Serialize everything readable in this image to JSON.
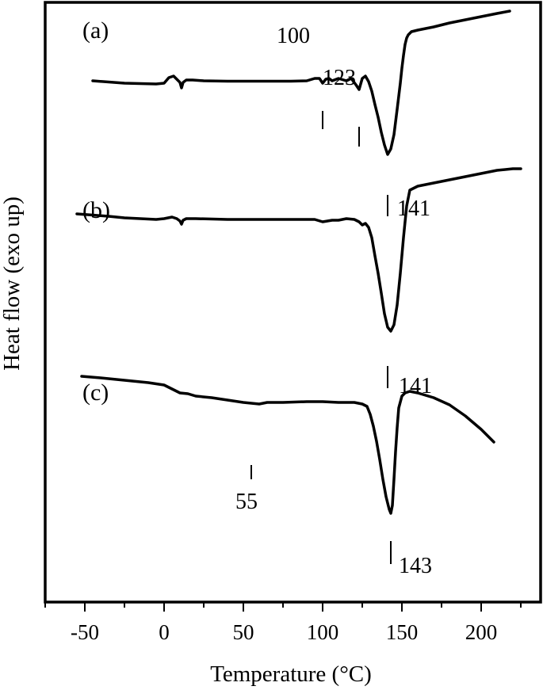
{
  "chart_data": {
    "type": "line",
    "xlabel": "Temperature (°C)",
    "ylabel": "Heat flow (exo up)",
    "xlim": [
      -75,
      230
    ],
    "xticks": [
      -50,
      0,
      50,
      100,
      150,
      200
    ],
    "xticks_minor": [
      -75,
      -25,
      25,
      75,
      125,
      175,
      225
    ],
    "series": [
      {
        "name": "(a)",
        "x": [
          -45,
          -35,
          -25,
          -15,
          -5,
          0,
          3,
          6,
          8,
          10,
          11,
          12,
          14,
          18,
          25,
          40,
          60,
          80,
          90,
          95,
          98,
          100,
          102,
          104,
          106,
          110,
          115,
          118,
          121,
          123,
          125,
          127,
          129,
          131,
          133,
          135,
          137,
          139,
          141,
          143,
          145,
          147,
          149,
          150,
          151,
          152,
          153,
          154,
          155,
          156,
          160,
          170,
          180,
          190,
          200,
          210,
          218
        ],
        "y": [
          102,
          103.5,
          105,
          105.5,
          106,
          105,
          98,
          96,
          100,
          104,
          111,
          104,
          101,
          101,
          102,
          102.5,
          102.5,
          102.5,
          102,
          99,
          99,
          105,
          100,
          99,
          102,
          99,
          102,
          99,
          107,
          113,
          99,
          96,
          103,
          115,
          132,
          148,
          167,
          183,
          195,
          188,
          170,
          138,
          105,
          86,
          70,
          56,
          48,
          44,
          42,
          40,
          38,
          34,
          29,
          25,
          21,
          17,
          14
        ]
      },
      {
        "name": "(b)",
        "x": [
          -55,
          -45,
          -35,
          -25,
          -15,
          -5,
          0,
          5,
          8,
          10,
          11,
          12,
          14,
          20,
          40,
          60,
          80,
          95,
          100,
          103,
          106,
          110,
          115,
          120,
          123,
          125,
          127,
          129,
          131,
          133,
          135,
          137,
          139,
          141,
          143,
          145,
          147,
          149,
          151,
          153,
          155,
          160,
          170,
          180,
          190,
          200,
          210,
          220,
          225
        ],
        "y": [
          270,
          271.5,
          273,
          275,
          276,
          277,
          276,
          274,
          276,
          279,
          283,
          278,
          276,
          276,
          277,
          277,
          277,
          277,
          280,
          279,
          278,
          278,
          276,
          277,
          280,
          284,
          282,
          287,
          300,
          323,
          345,
          370,
          396,
          413,
          418,
          410,
          385,
          345,
          300,
          260,
          240,
          235,
          231,
          227,
          223,
          219,
          215,
          213,
          213
        ]
      },
      {
        "name": "(c)",
        "x": [
          -52,
          -40,
          -30,
          -20,
          -10,
          0,
          5,
          10,
          15,
          20,
          30,
          40,
          50,
          55,
          60,
          65,
          75,
          90,
          100,
          110,
          120,
          125,
          128,
          130,
          132,
          134,
          136,
          138,
          140,
          142,
          143,
          144,
          145,
          146,
          147,
          148,
          150,
          152,
          155,
          160,
          170,
          180,
          190,
          200,
          205,
          208
        ],
        "y": [
          475,
          477,
          479,
          481,
          483,
          486,
          491,
          496,
          497,
          500,
          502,
          505,
          508,
          509,
          510,
          508,
          508,
          507,
          507,
          508,
          508,
          510,
          513,
          523,
          538,
          557,
          580,
          605,
          627,
          643,
          648,
          638,
          605,
          570,
          540,
          515,
          500,
          496,
          494,
          496,
          502,
          511,
          525,
          542,
          552,
          558
        ]
      }
    ],
    "panel_labels": [
      "(a)",
      "(b)",
      "(c)"
    ],
    "annotations": [
      {
        "series": "(a)",
        "x": 100,
        "label": "100"
      },
      {
        "series": "(a)",
        "x": 123,
        "label": "123"
      },
      {
        "series": "(a)",
        "x": 141,
        "label": "141"
      },
      {
        "series": "(b)",
        "x": 141,
        "label": "141"
      },
      {
        "series": "(c)",
        "x": 55,
        "label": "55"
      },
      {
        "series": "(c)",
        "x": 143,
        "label": "143"
      }
    ],
    "grid": false,
    "legend": "none"
  }
}
